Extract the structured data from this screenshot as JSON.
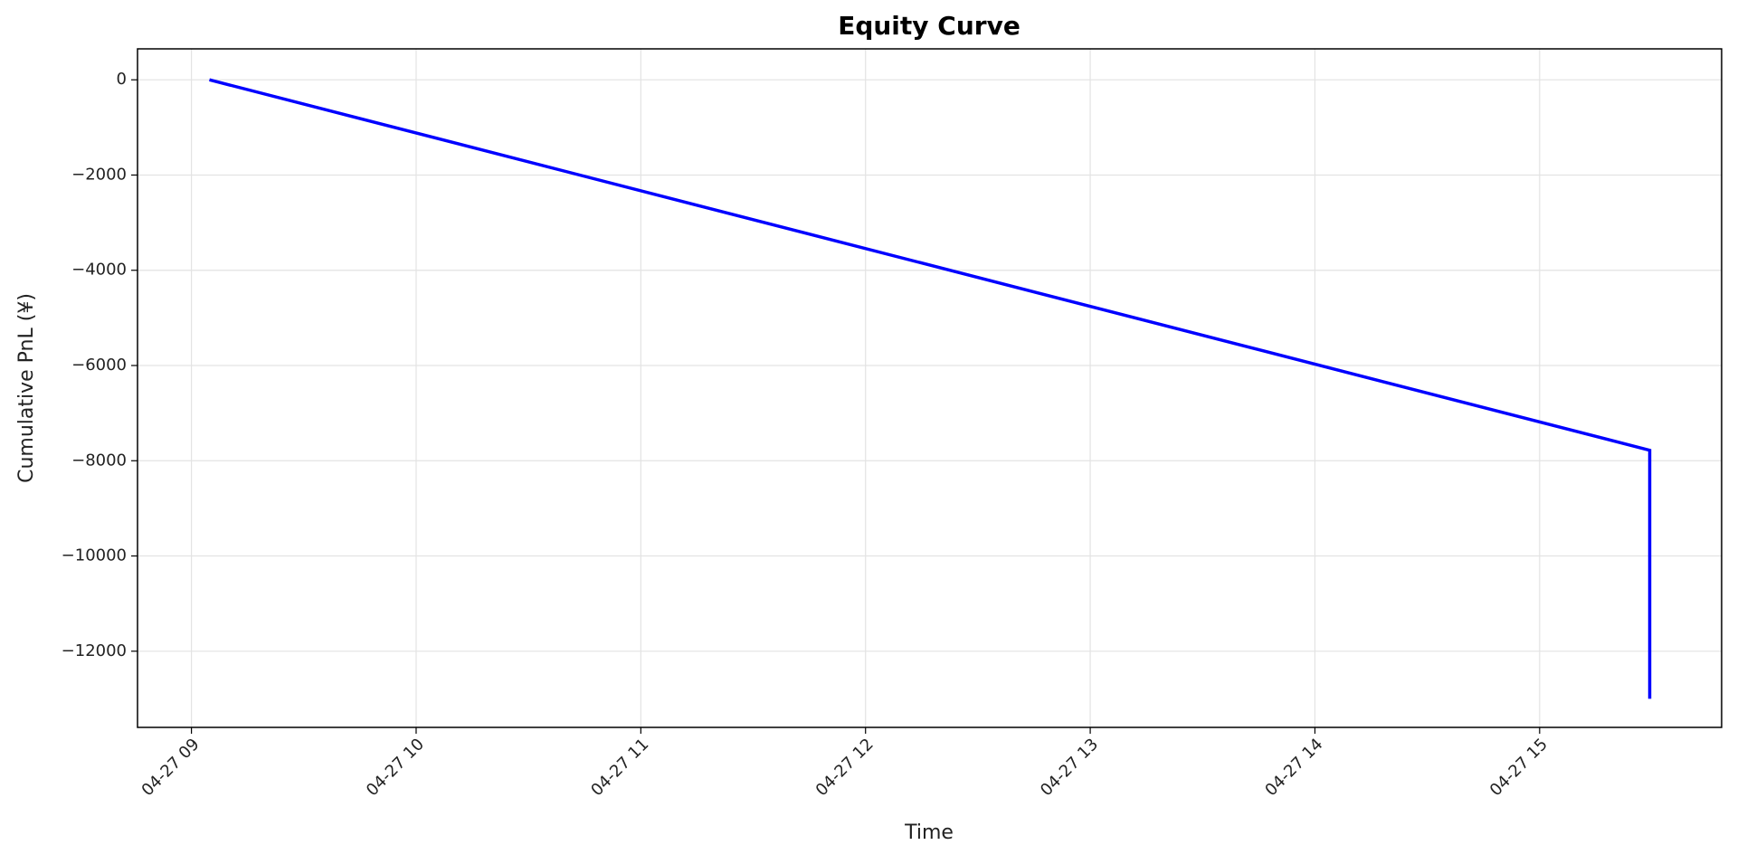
{
  "chart_data": {
    "type": "line",
    "title": "Equity Curve",
    "x_label": "Time",
    "y_label": "Cumulative PnL (¥)",
    "x": [
      9.08,
      15.49,
      15.49
    ],
    "series": [
      {
        "name": "Cumulative PnL",
        "color": "#0000ff",
        "values": [
          0,
          -7780,
          -13000
        ]
      }
    ],
    "xlim": [
      8.76,
      15.81
    ],
    "xticks": [
      {
        "value": 9,
        "label": "04-27 09"
      },
      {
        "value": 10,
        "label": "04-27 10"
      },
      {
        "value": 11,
        "label": "04-27 11"
      },
      {
        "value": 12,
        "label": "04-27 12"
      },
      {
        "value": 13,
        "label": "04-27 13"
      },
      {
        "value": 14,
        "label": "04-27 14"
      },
      {
        "value": 15,
        "label": "04-27 15"
      }
    ],
    "ylim": [
      -13600,
      650
    ],
    "yticks": [
      0,
      {
        "value": -2000,
        "label": "−2000"
      },
      {
        "value": -4000,
        "label": "−4000"
      },
      {
        "value": -6000,
        "label": "−6000"
      },
      {
        "value": -8000,
        "label": "−8000"
      },
      {
        "value": -10000,
        "label": "−10000"
      },
      {
        "value": -12000,
        "label": "−12000"
      }
    ],
    "grid": true
  }
}
